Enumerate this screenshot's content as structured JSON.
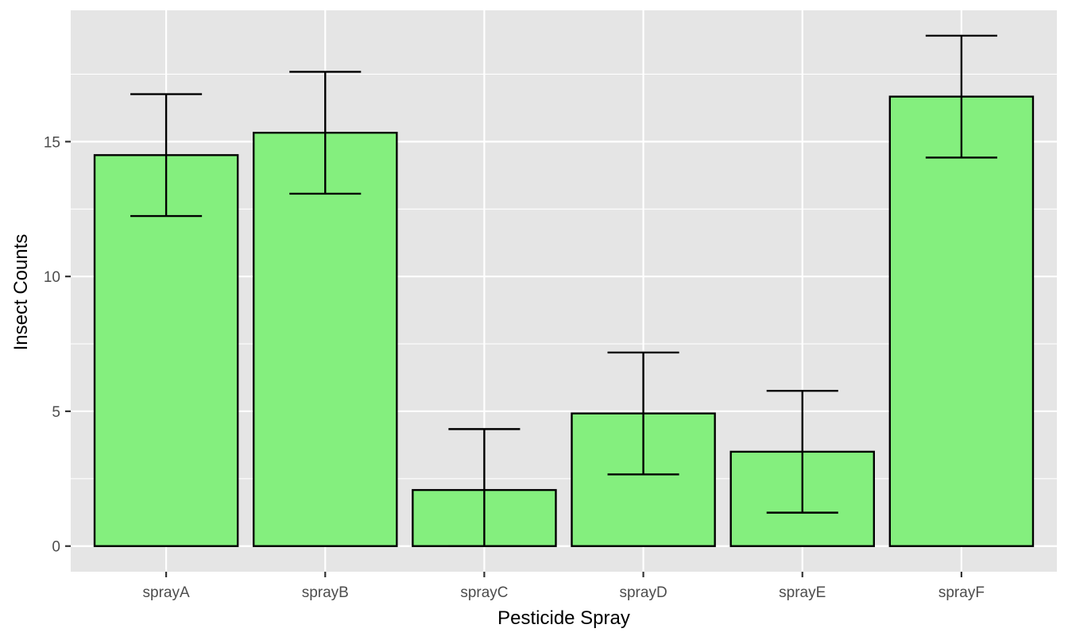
{
  "chart_data": {
    "type": "bar",
    "title": "",
    "xlabel": "Pesticide Spray",
    "ylabel": "Insect Counts",
    "categories": [
      "sprayA",
      "sprayB",
      "sprayC",
      "sprayD",
      "sprayE",
      "sprayF"
    ],
    "values": [
      14.5,
      15.33,
      2.08,
      4.92,
      3.5,
      16.67
    ],
    "error_low": [
      12.24,
      13.07,
      0.0,
      2.66,
      1.24,
      14.41
    ],
    "error_high": [
      16.76,
      17.59,
      4.34,
      7.18,
      5.76,
      18.93
    ],
    "y_ticks": [
      0,
      5,
      10,
      15
    ],
    "y_tick_labels": [
      "0",
      "5",
      "10",
      "15"
    ],
    "ylim": [
      -0.95,
      19.87
    ],
    "grid": true,
    "colors": {
      "panel_background": "#E5E5E5",
      "grid": "#FFFFFF",
      "bar_fill": "#84EF7E",
      "bar_stroke": "#000000",
      "error_bar": "#000000",
      "tick_text": "#4D4D4D",
      "tick_mark": "#333333"
    }
  }
}
